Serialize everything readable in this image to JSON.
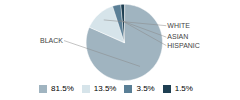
{
  "chart_data": {
    "type": "pie",
    "categories": [
      "BLACK",
      "WHITE",
      "ASIAN",
      "HISPANIC"
    ],
    "values": [
      81.5,
      13.5,
      3.5,
      1.5
    ],
    "value_labels": [
      "81.5%",
      "13.5%",
      "3.5%",
      "1.5%"
    ],
    "colors": [
      "#a0b4c0",
      "#d6e4ea",
      "#5a7f96",
      "#1e3f52"
    ],
    "legend": "bottom"
  }
}
